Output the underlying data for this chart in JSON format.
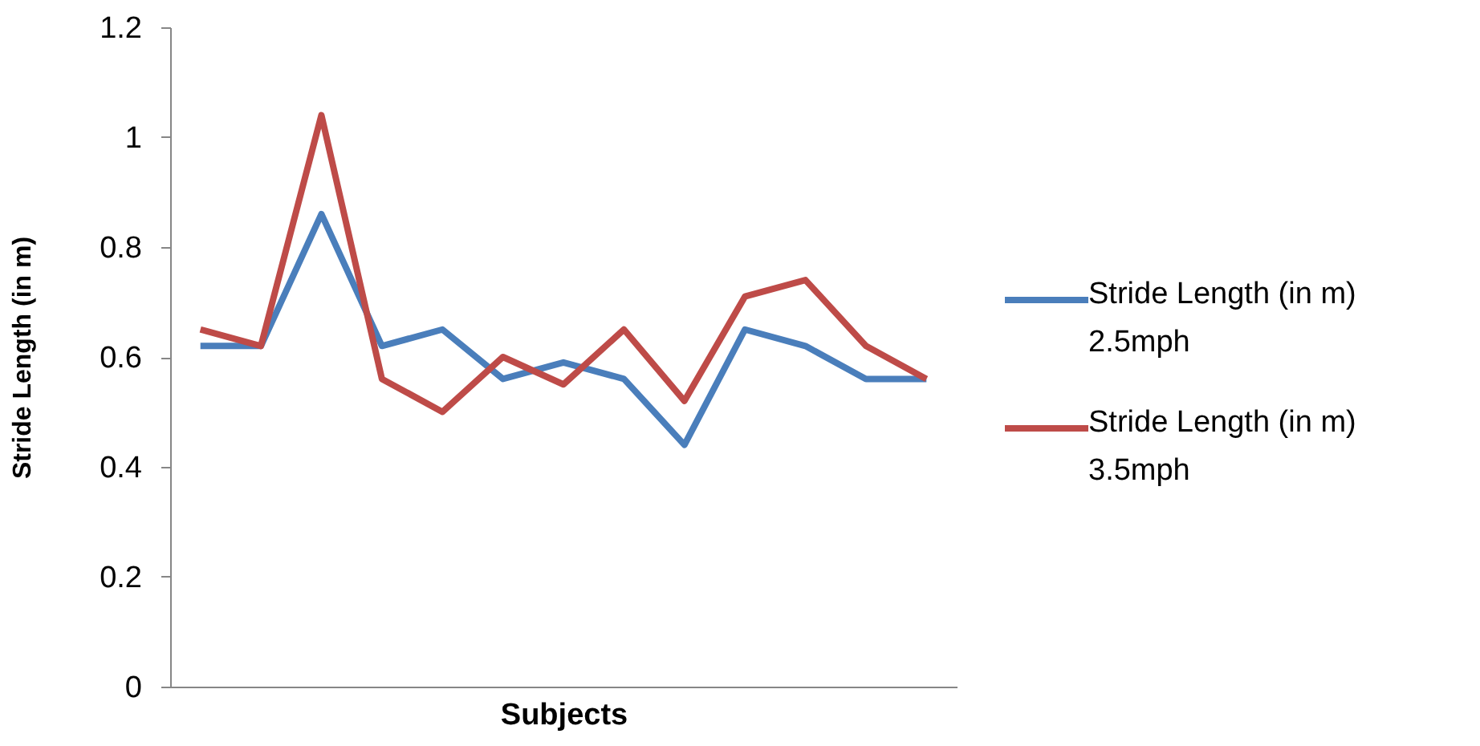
{
  "chart_data": {
    "type": "line",
    "categories": [
      null,
      null,
      null,
      null,
      null,
      null,
      null,
      null,
      null,
      null,
      null,
      null,
      null
    ],
    "series": [
      {
        "name": "Stride Length (in m) 2.5mph",
        "color": "#4a7ebb",
        "values": [
          0.62,
          0.62,
          0.86,
          0.62,
          0.65,
          0.56,
          0.59,
          0.56,
          0.44,
          0.65,
          0.62,
          0.56,
          0.56
        ]
      },
      {
        "name": "Stride Length (in m) 3.5mph",
        "color": "#be4b48",
        "values": [
          0.65,
          0.62,
          1.04,
          0.56,
          0.5,
          0.6,
          0.55,
          0.65,
          0.52,
          0.71,
          0.74,
          0.62,
          0.56
        ]
      }
    ],
    "xlabel": "Subjects",
    "ylabel": "Stride Length (in m)",
    "ylim": [
      0,
      1.2
    ],
    "yticks": [
      0,
      0.2,
      0.4,
      0.6,
      0.8,
      1,
      1.2
    ],
    "tick_labels": "y",
    "grid": false,
    "legend": "right",
    "marker": "none",
    "line_style": "solid"
  }
}
